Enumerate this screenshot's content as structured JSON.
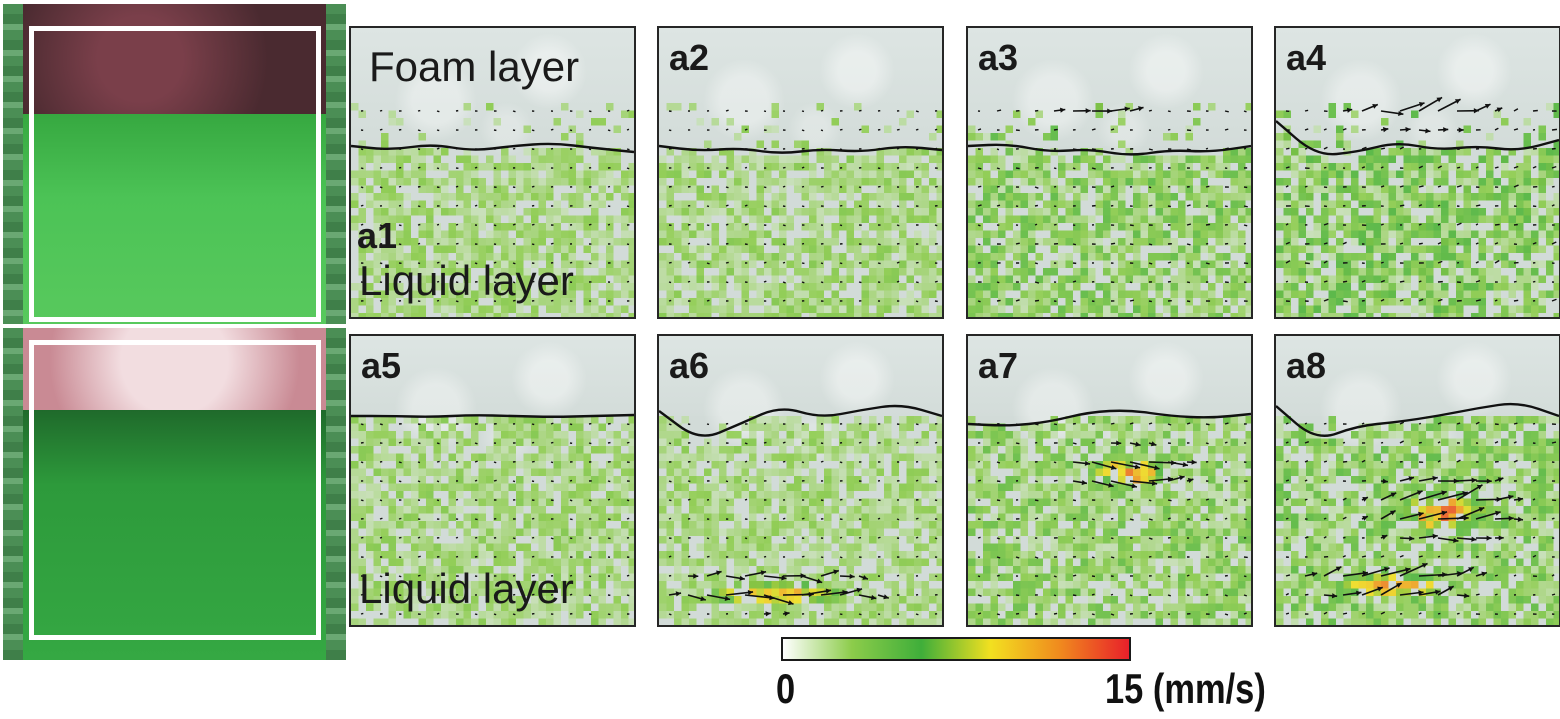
{
  "figure": {
    "photos": [
      {
        "state": "with-foam-before",
        "foam_color": "#5a2e36",
        "liquid_color": "#3cb84a"
      },
      {
        "state": "with-foam-after",
        "foam_color": "#e8c8cc",
        "liquid_color": "#2a9a3a"
      }
    ],
    "panels": [
      {
        "label": "a1",
        "top_text": "Foam layer",
        "bottom_text": "Liquid layer",
        "intensity": 0.15,
        "hot": []
      },
      {
        "label": "a2",
        "top_text": "",
        "bottom_text": "",
        "intensity": 0.2,
        "hot": []
      },
      {
        "label": "a3",
        "top_text": "",
        "bottom_text": "",
        "intensity": 0.55,
        "hot": [
          [
            0.45,
            0.22,
            0.35,
            0.12
          ]
        ]
      },
      {
        "label": "a4",
        "top_text": "",
        "bottom_text": "",
        "intensity": 0.75,
        "hot": [
          [
            0.5,
            0.22,
            0.45,
            0.18
          ]
        ]
      },
      {
        "label": "a5",
        "top_text": "",
        "bottom_text": "Liquid layer",
        "intensity": 0.2,
        "hot": []
      },
      {
        "label": "a6",
        "top_text": "",
        "bottom_text": "",
        "intensity": 0.15,
        "hot": [
          [
            0.4,
            0.88,
            0.6,
            0.1
          ]
        ]
      },
      {
        "label": "a7",
        "top_text": "",
        "bottom_text": "",
        "intensity": 0.45,
        "hot": [
          [
            0.55,
            0.46,
            0.35,
            0.12
          ]
        ]
      },
      {
        "label": "a8",
        "top_text": "",
        "bottom_text": "",
        "intensity": 0.55,
        "hot": [
          [
            0.58,
            0.6,
            0.4,
            0.18
          ],
          [
            0.4,
            0.85,
            0.5,
            0.1
          ]
        ]
      }
    ],
    "colorbar": {
      "min_label": "0",
      "max_label": "15 (mm/s)",
      "min": 0,
      "max": 15,
      "colors": [
        "#ffffff",
        "#8ccc4a",
        "#3fae3a",
        "#f2e020",
        "#f08a1e",
        "#e8202a"
      ]
    }
  }
}
